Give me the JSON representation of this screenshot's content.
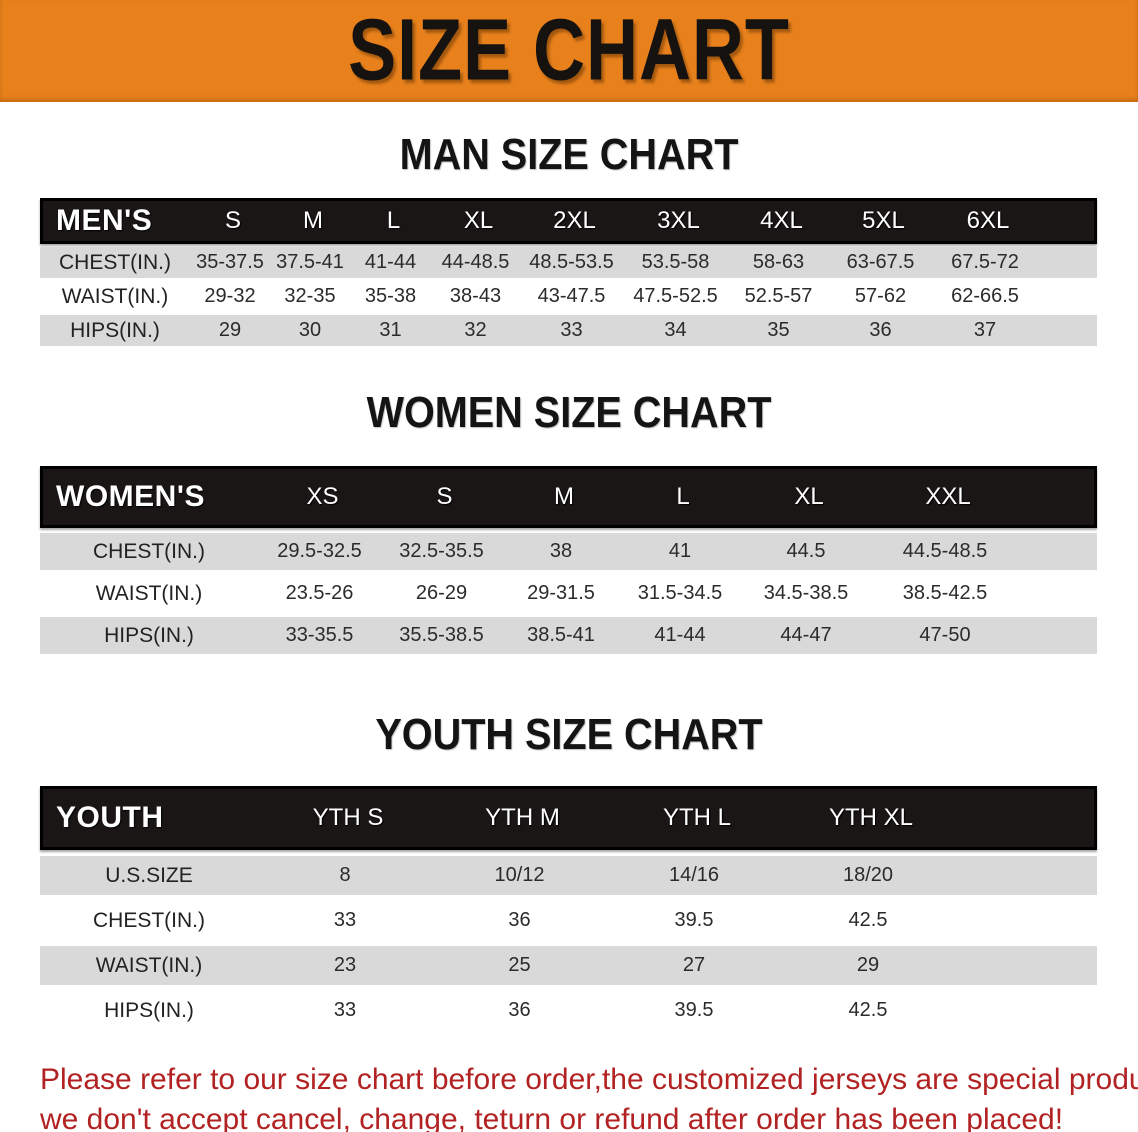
{
  "banner": {
    "title": "SIZE CHART",
    "bg_color": "#e8811c"
  },
  "sections": {
    "man": {
      "heading": "MAN SIZE CHART"
    },
    "women": {
      "heading": "WOMEN SIZE CHART"
    },
    "youth": {
      "heading": "YOUTH SIZE CHART"
    }
  },
  "tables": {
    "men": {
      "header_label": "MEN'S",
      "columns": [
        "S",
        "M",
        "L",
        "XL",
        "2XL",
        "3XL",
        "4XL",
        "5XL",
        "6XL"
      ],
      "rows": [
        {
          "label": "CHEST(IN.)",
          "values": [
            "35-37.5",
            "37.5-41",
            "41-44",
            "44-48.5",
            "48.5-53.5",
            "53.5-58",
            "58-63",
            "63-67.5",
            "67.5-72"
          ]
        },
        {
          "label": "WAIST(IN.)",
          "values": [
            "29-32",
            "32-35",
            "35-38",
            "38-43",
            "43-47.5",
            "47.5-52.5",
            "52.5-57",
            "57-62",
            "62-66.5"
          ]
        },
        {
          "label": "HIPS(IN.)",
          "values": [
            "29",
            "30",
            "31",
            "32",
            "33",
            "34",
            "35",
            "36",
            "37"
          ]
        }
      ]
    },
    "women": {
      "header_label": "WOMEN'S",
      "columns": [
        "XS",
        "S",
        "M",
        "L",
        "XL",
        "XXL"
      ],
      "rows": [
        {
          "label": "CHEST(IN.)",
          "values": [
            "29.5-32.5",
            "32.5-35.5",
            "38",
            "41",
            "44.5",
            "44.5-48.5"
          ]
        },
        {
          "label": "WAIST(IN.)",
          "values": [
            "23.5-26",
            "26-29",
            "29-31.5",
            "31.5-34.5",
            "34.5-38.5",
            "38.5-42.5"
          ]
        },
        {
          "label": "HIPS(IN.)",
          "values": [
            "33-35.5",
            "35.5-38.5",
            "38.5-41",
            "41-44",
            "44-47",
            "47-50"
          ]
        }
      ]
    },
    "youth": {
      "header_label": "YOUTH",
      "columns": [
        "YTH S",
        "YTH M",
        "YTH L",
        "YTH XL"
      ],
      "rows": [
        {
          "label": "U.S.SIZE",
          "values": [
            "8",
            "10/12",
            "14/16",
            "18/20"
          ]
        },
        {
          "label": "CHEST(IN.)",
          "values": [
            "33",
            "36",
            "39.5",
            "42.5"
          ]
        },
        {
          "label": "WAIST(IN.)",
          "values": [
            "23",
            "25",
            "27",
            "29"
          ]
        },
        {
          "label": "HIPS(IN.)",
          "values": [
            "33",
            "36",
            "39.5",
            "42.5"
          ]
        }
      ]
    }
  },
  "disclaimer": {
    "line1": "Please refer to our size chart before order,the customized jerseys are special products,",
    "line2": "we don't accept cancel, change, teturn or refund after order has been placed!",
    "color": "#b22222"
  }
}
